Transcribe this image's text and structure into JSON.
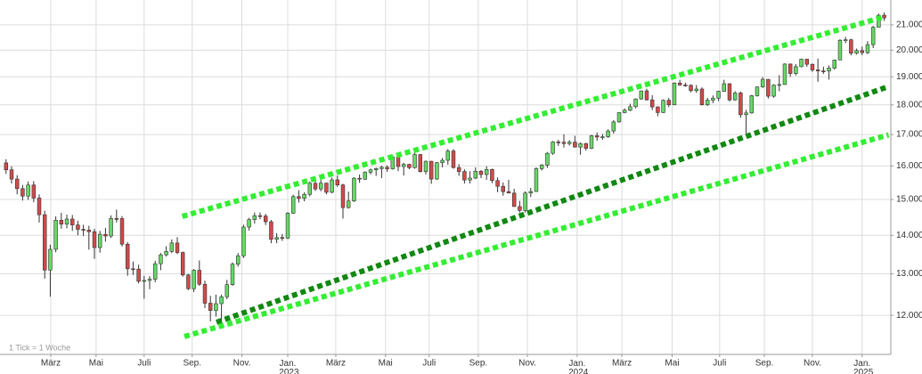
{
  "chart_data": {
    "type": "candlestick",
    "note": "1 Tick = 1 Woche",
    "log_scale": true,
    "grid": true,
    "up_color": "#66d866",
    "down_color": "#d24a4a",
    "xlim": [
      -1.1,
      160.2
    ],
    "xticks": [
      {
        "value": 8.1,
        "label": "März"
      },
      {
        "value": 16.3,
        "label": "Mai"
      },
      {
        "value": 25.0,
        "label": "Juli"
      },
      {
        "value": 33.7,
        "label": "Sep."
      },
      {
        "value": 42.7,
        "label": "Nov."
      },
      {
        "value": 51.0,
        "label": "Jan. 2023"
      },
      {
        "value": 59.7,
        "label": "März"
      },
      {
        "value": 68.7,
        "label": "Mai"
      },
      {
        "value": 76.6,
        "label": "Juli"
      },
      {
        "value": 85.5,
        "label": "Sep."
      },
      {
        "value": 94.4,
        "label": "Nov."
      },
      {
        "value": 103.4,
        "label": "Jan. 2024"
      },
      {
        "value": 111.5,
        "label": "März"
      },
      {
        "value": 120.6,
        "label": "Mai"
      },
      {
        "value": 129.2,
        "label": "Juli"
      },
      {
        "value": 137.3,
        "label": "Sep."
      },
      {
        "value": 146.0,
        "label": "Nov."
      },
      {
        "value": 155.0,
        "label": "Jan. 2025"
      }
    ],
    "ylim": [
      11130,
      22030
    ],
    "yticks": [
      {
        "value": 12000,
        "label": "12.000"
      },
      {
        "value": 13000,
        "label": "13.000"
      },
      {
        "value": 14000,
        "label": "14.000"
      },
      {
        "value": 15000,
        "label": "15.000"
      },
      {
        "value": 16000,
        "label": "16.000"
      },
      {
        "value": 17000,
        "label": "17.000"
      },
      {
        "value": 18000,
        "label": "18.000"
      },
      {
        "value": 19000,
        "label": "19.000"
      },
      {
        "value": 20000,
        "label": "20.000"
      },
      {
        "value": 21000,
        "label": "21.000"
      }
    ],
    "channels": [
      {
        "color": "#33ee33",
        "x": [
          31.9,
          158.6
        ],
        "y": [
          14520,
          21300
        ]
      },
      {
        "color": "#118811",
        "x": [
          38.1,
          159.8
        ],
        "y": [
          11840,
          18650
        ]
      },
      {
        "color": "#33ee33",
        "x": [
          32.3,
          159.8
        ],
        "y": [
          11520,
          16990
        ]
      }
    ],
    "candles": [
      [
        16097,
        16210,
        15760,
        15883
      ],
      [
        15883,
        15990,
        15470,
        15603
      ],
      [
        15603,
        15720,
        15150,
        15318
      ],
      [
        15318,
        15430,
        14970,
        15099
      ],
      [
        15099,
        15530,
        14990,
        15425
      ],
      [
        15425,
        15540,
        14920,
        15042
      ],
      [
        15042,
        15150,
        14350,
        14567
      ],
      [
        14567,
        14680,
        12880,
        13094
      ],
      [
        13094,
        13750,
        12440,
        13628
      ],
      [
        13628,
        14520,
        13550,
        14413
      ],
      [
        14413,
        14620,
        14180,
        14305
      ],
      [
        14305,
        14570,
        14190,
        14446
      ],
      [
        14446,
        14560,
        14120,
        14283
      ],
      [
        14283,
        14400,
        14000,
        14163
      ],
      [
        14163,
        14290,
        13980,
        14142
      ],
      [
        14142,
        14260,
        13620,
        14098
      ],
      [
        14098,
        14180,
        13380,
        13674
      ],
      [
        13674,
        14120,
        13540,
        14027
      ],
      [
        14027,
        14200,
        13830,
        13982
      ],
      [
        13982,
        14550,
        13930,
        14462
      ],
      [
        14462,
        14710,
        14350,
        14460
      ],
      [
        14460,
        14530,
        13700,
        13762
      ],
      [
        13762,
        13820,
        12950,
        13126
      ],
      [
        13126,
        13310,
        12970,
        13118
      ],
      [
        13118,
        13230,
        12760,
        12813
      ],
      [
        12813,
        12950,
        12390,
        12834
      ],
      [
        12834,
        12940,
        12620,
        12864
      ],
      [
        12864,
        13330,
        12790,
        13254
      ],
      [
        13254,
        13530,
        13090,
        13484
      ],
      [
        13484,
        13710,
        13440,
        13573
      ],
      [
        13573,
        13890,
        13530,
        13795
      ],
      [
        13795,
        13950,
        13500,
        13544
      ],
      [
        13544,
        13570,
        12930,
        12971
      ],
      [
        12971,
        13000,
        12600,
        12631
      ],
      [
        12631,
        13120,
        12550,
        13088
      ],
      [
        13088,
        13340,
        12700,
        12741
      ],
      [
        12741,
        12830,
        12170,
        12284
      ],
      [
        12284,
        12460,
        11860,
        12114
      ],
      [
        12114,
        12490,
        11970,
        12273
      ],
      [
        12273,
        12490,
        11860,
        12438
      ],
      [
        12438,
        12850,
        12380,
        12731
      ],
      [
        12731,
        13290,
        12700,
        13243
      ],
      [
        13243,
        13530,
        13180,
        13460
      ],
      [
        13460,
        14290,
        13400,
        14224
      ],
      [
        14224,
        14480,
        14130,
        14431
      ],
      [
        14431,
        14630,
        14320,
        14541
      ],
      [
        14541,
        14630,
        14440,
        14529
      ],
      [
        14529,
        14590,
        14280,
        14371
      ],
      [
        14371,
        14420,
        13790,
        13894
      ],
      [
        13894,
        14060,
        13790,
        13940
      ],
      [
        13940,
        14040,
        13850,
        13924
      ],
      [
        13924,
        14640,
        13900,
        14610
      ],
      [
        14610,
        15140,
        14590,
        15086
      ],
      [
        15086,
        15270,
        14910,
        15033
      ],
      [
        15033,
        15210,
        14950,
        15150
      ],
      [
        15150,
        15530,
        15090,
        15476
      ],
      [
        15476,
        15660,
        15250,
        15308
      ],
      [
        15308,
        15580,
        15240,
        15482
      ],
      [
        15482,
        15490,
        15150,
        15210
      ],
      [
        15210,
        15650,
        15180,
        15578
      ],
      [
        15578,
        15710,
        15370,
        15428
      ],
      [
        15428,
        15460,
        14460,
        14768
      ],
      [
        14768,
        15230,
        14740,
        14957
      ],
      [
        14957,
        15660,
        14930,
        15629
      ],
      [
        15629,
        15740,
        15490,
        15598
      ],
      [
        15598,
        15840,
        15580,
        15808
      ],
      [
        15808,
        15920,
        15740,
        15882
      ],
      [
        15882,
        15950,
        15700,
        15922
      ],
      [
        15922,
        16010,
        15630,
        15961
      ],
      [
        15961,
        16020,
        15820,
        15914
      ],
      [
        15914,
        16330,
        15890,
        16275
      ],
      [
        16275,
        16330,
        15840,
        15984
      ],
      [
        15984,
        16100,
        15710,
        16051
      ],
      [
        16051,
        16070,
        15900,
        15950
      ],
      [
        15950,
        16430,
        15920,
        16358
      ],
      [
        16358,
        16370,
        15800,
        15830
      ],
      [
        15830,
        16170,
        15740,
        16148
      ],
      [
        16148,
        16160,
        15460,
        15603
      ],
      [
        15603,
        16120,
        15580,
        16105
      ],
      [
        16105,
        16250,
        15960,
        16177
      ],
      [
        16177,
        16530,
        16040,
        16469
      ],
      [
        16469,
        16530,
        15920,
        15952
      ],
      [
        15952,
        16060,
        15700,
        15832
      ],
      [
        15832,
        15900,
        15470,
        15575
      ],
      [
        15575,
        15840,
        15470,
        15632
      ],
      [
        15632,
        15960,
        15600,
        15840
      ],
      [
        15840,
        15880,
        15630,
        15740
      ],
      [
        15740,
        15990,
        15580,
        15894
      ],
      [
        15894,
        15920,
        15480,
        15557
      ],
      [
        15557,
        15650,
        15210,
        15387
      ],
      [
        15387,
        15500,
        15110,
        15229
      ],
      [
        15229,
        15580,
        15180,
        15187
      ],
      [
        15187,
        15310,
        14790,
        14798
      ],
      [
        14798,
        14960,
        14630,
        14687
      ],
      [
        14687,
        15240,
        14630,
        15189
      ],
      [
        15189,
        15340,
        15070,
        15234
      ],
      [
        15234,
        15960,
        15220,
        15919
      ],
      [
        15919,
        16060,
        15860,
        16029
      ],
      [
        16029,
        16440,
        15940,
        16397
      ],
      [
        16397,
        16790,
        16350,
        16759
      ],
      [
        16759,
        16830,
        16630,
        16751
      ],
      [
        16751,
        17010,
        16580,
        16706
      ],
      [
        16706,
        16820,
        16640,
        16752
      ],
      [
        16752,
        16960,
        16580,
        16594
      ],
      [
        16594,
        16740,
        16350,
        16705
      ],
      [
        16705,
        16730,
        16480,
        16555
      ],
      [
        16555,
        16990,
        16530,
        16961
      ],
      [
        16961,
        17070,
        16800,
        16918
      ],
      [
        16918,
        17020,
        16830,
        16927
      ],
      [
        16927,
        17170,
        16890,
        17117
      ],
      [
        17117,
        17480,
        17030,
        17419
      ],
      [
        17419,
        17750,
        17390,
        17735
      ],
      [
        17735,
        17880,
        17710,
        17815
      ],
      [
        17815,
        18040,
        17780,
        17936
      ],
      [
        17936,
        18230,
        17880,
        18206
      ],
      [
        18206,
        18500,
        18180,
        18492
      ],
      [
        18492,
        18570,
        18150,
        18175
      ],
      [
        18175,
        18340,
        17820,
        17930
      ],
      [
        17930,
        17950,
        17610,
        17737
      ],
      [
        17737,
        18190,
        17720,
        18161
      ],
      [
        18161,
        18240,
        17920,
        18002
      ],
      [
        18002,
        18800,
        17990,
        18773
      ],
      [
        18773,
        18890,
        18670,
        18704
      ],
      [
        18704,
        18790,
        18640,
        18694
      ],
      [
        18694,
        18720,
        18440,
        18498
      ],
      [
        18498,
        18700,
        18420,
        18557
      ],
      [
        18557,
        18620,
        17980,
        18002
      ],
      [
        18002,
        18250,
        17960,
        18164
      ],
      [
        18164,
        18330,
        18060,
        18235
      ],
      [
        18235,
        18500,
        18130,
        18475
      ],
      [
        18475,
        18890,
        18460,
        18748
      ],
      [
        18748,
        18770,
        18120,
        18172
      ],
      [
        18172,
        18480,
        18150,
        18418
      ],
      [
        18418,
        18470,
        17560,
        17661
      ],
      [
        17661,
        17830,
        17020,
        17723
      ],
      [
        17723,
        18350,
        17700,
        18322
      ],
      [
        18322,
        18650,
        18290,
        18633
      ],
      [
        18633,
        18990,
        18600,
        18907
      ],
      [
        18907,
        18920,
        18220,
        18302
      ],
      [
        18302,
        18730,
        18250,
        18699
      ],
      [
        18699,
        19060,
        18480,
        18720
      ],
      [
        18720,
        19500,
        18710,
        19474
      ],
      [
        19474,
        19490,
        19000,
        19121
      ],
      [
        19121,
        19470,
        19050,
        19374
      ],
      [
        19374,
        19680,
        19350,
        19657
      ],
      [
        19657,
        19670,
        19370,
        19464
      ],
      [
        19464,
        19490,
        19180,
        19255
      ],
      [
        19255,
        19680,
        18820,
        19216
      ],
      [
        19216,
        19370,
        19110,
        19211
      ],
      [
        19211,
        19420,
        18900,
        19323
      ],
      [
        19323,
        19640,
        19270,
        19626
      ],
      [
        19626,
        20430,
        19620,
        20385
      ],
      [
        20385,
        20520,
        20270,
        20406
      ],
      [
        20406,
        20440,
        19800,
        19885
      ],
      [
        19885,
        20060,
        19830,
        19984
      ],
      [
        19984,
        20140,
        19810,
        19906
      ],
      [
        19906,
        20350,
        19850,
        20215
      ],
      [
        20215,
        20960,
        20080,
        20903
      ],
      [
        20903,
        21460,
        20900,
        21394
      ],
      [
        21394,
        21500,
        21160,
        21282
      ]
    ]
  }
}
